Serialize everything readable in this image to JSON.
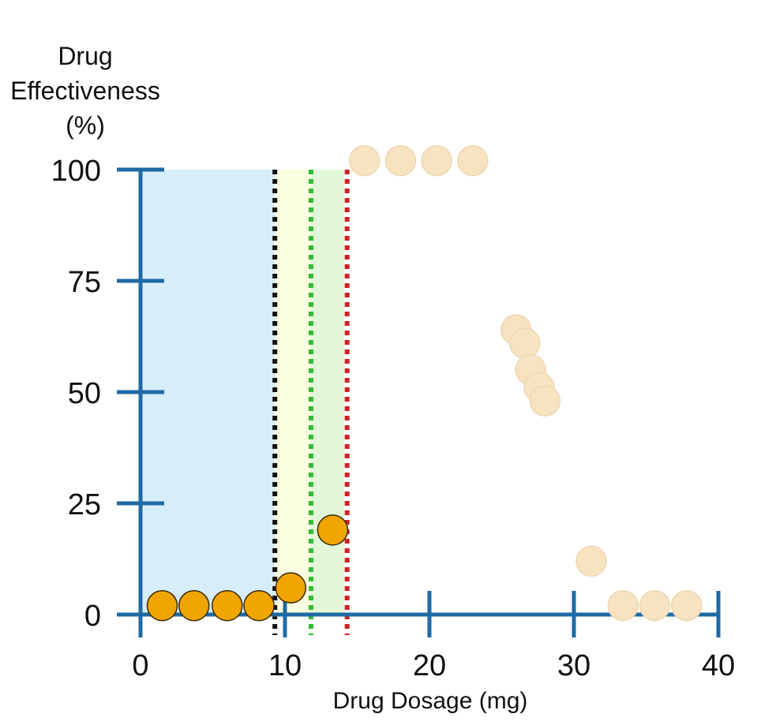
{
  "chart_data": {
    "type": "scatter",
    "title": "",
    "ylabel_lines": [
      "Drug",
      "Effectiveness",
      "(%)"
    ],
    "xlabel": "Drug Dosage (mg)",
    "xlim": [
      0,
      40
    ],
    "ylim": [
      0,
      100
    ],
    "x_ticks": [
      {
        "value": 0,
        "label": "0"
      },
      {
        "value": 10,
        "label": "10"
      },
      {
        "value": 20,
        "label": "20"
      },
      {
        "value": 30,
        "label": "30"
      },
      {
        "value": 40,
        "label": "40"
      }
    ],
    "y_ticks": [
      {
        "value": 0,
        "label": "0"
      },
      {
        "value": 25,
        "label": "25"
      },
      {
        "value": 50,
        "label": "50"
      },
      {
        "value": 75,
        "label": "75"
      },
      {
        "value": 100,
        "label": "100"
      }
    ],
    "grid": false,
    "axis_color": "#1f6aa5",
    "shaded_regions": [
      {
        "x_start": 0,
        "x_end": 9.3,
        "color": "#d8edfa"
      },
      {
        "x_start": 9.3,
        "x_end": 11.8,
        "color": "#fbfde0"
      },
      {
        "x_start": 11.8,
        "x_end": 14.1,
        "color": "#e3f8d8"
      }
    ],
    "thresholds": [
      {
        "x": 9.3,
        "color": "#111111"
      },
      {
        "x": 11.8,
        "color": "#33bb33"
      },
      {
        "x": 14.3,
        "color": "#cc2222"
      }
    ],
    "series": [
      {
        "color": "#f0a500",
        "faded": false,
        "points": [
          {
            "x": 1.5,
            "y": 2
          },
          {
            "x": 3.7,
            "y": 2
          },
          {
            "x": 6.0,
            "y": 2
          },
          {
            "x": 8.2,
            "y": 2
          },
          {
            "x": 10.4,
            "y": 6
          },
          {
            "x": 13.3,
            "y": 19
          }
        ]
      },
      {
        "color": "#f7e3c0",
        "faded": true,
        "points": [
          {
            "x": 15.5,
            "y": 102
          },
          {
            "x": 18.0,
            "y": 102
          },
          {
            "x": 20.5,
            "y": 102
          },
          {
            "x": 23.0,
            "y": 102
          },
          {
            "x": 26.0,
            "y": 64
          },
          {
            "x": 26.6,
            "y": 61
          },
          {
            "x": 27.0,
            "y": 55
          },
          {
            "x": 27.6,
            "y": 51
          },
          {
            "x": 28.0,
            "y": 48
          },
          {
            "x": 31.2,
            "y": 12
          },
          {
            "x": 33.4,
            "y": 2
          },
          {
            "x": 35.6,
            "y": 2
          },
          {
            "x": 37.8,
            "y": 2
          }
        ]
      }
    ]
  }
}
